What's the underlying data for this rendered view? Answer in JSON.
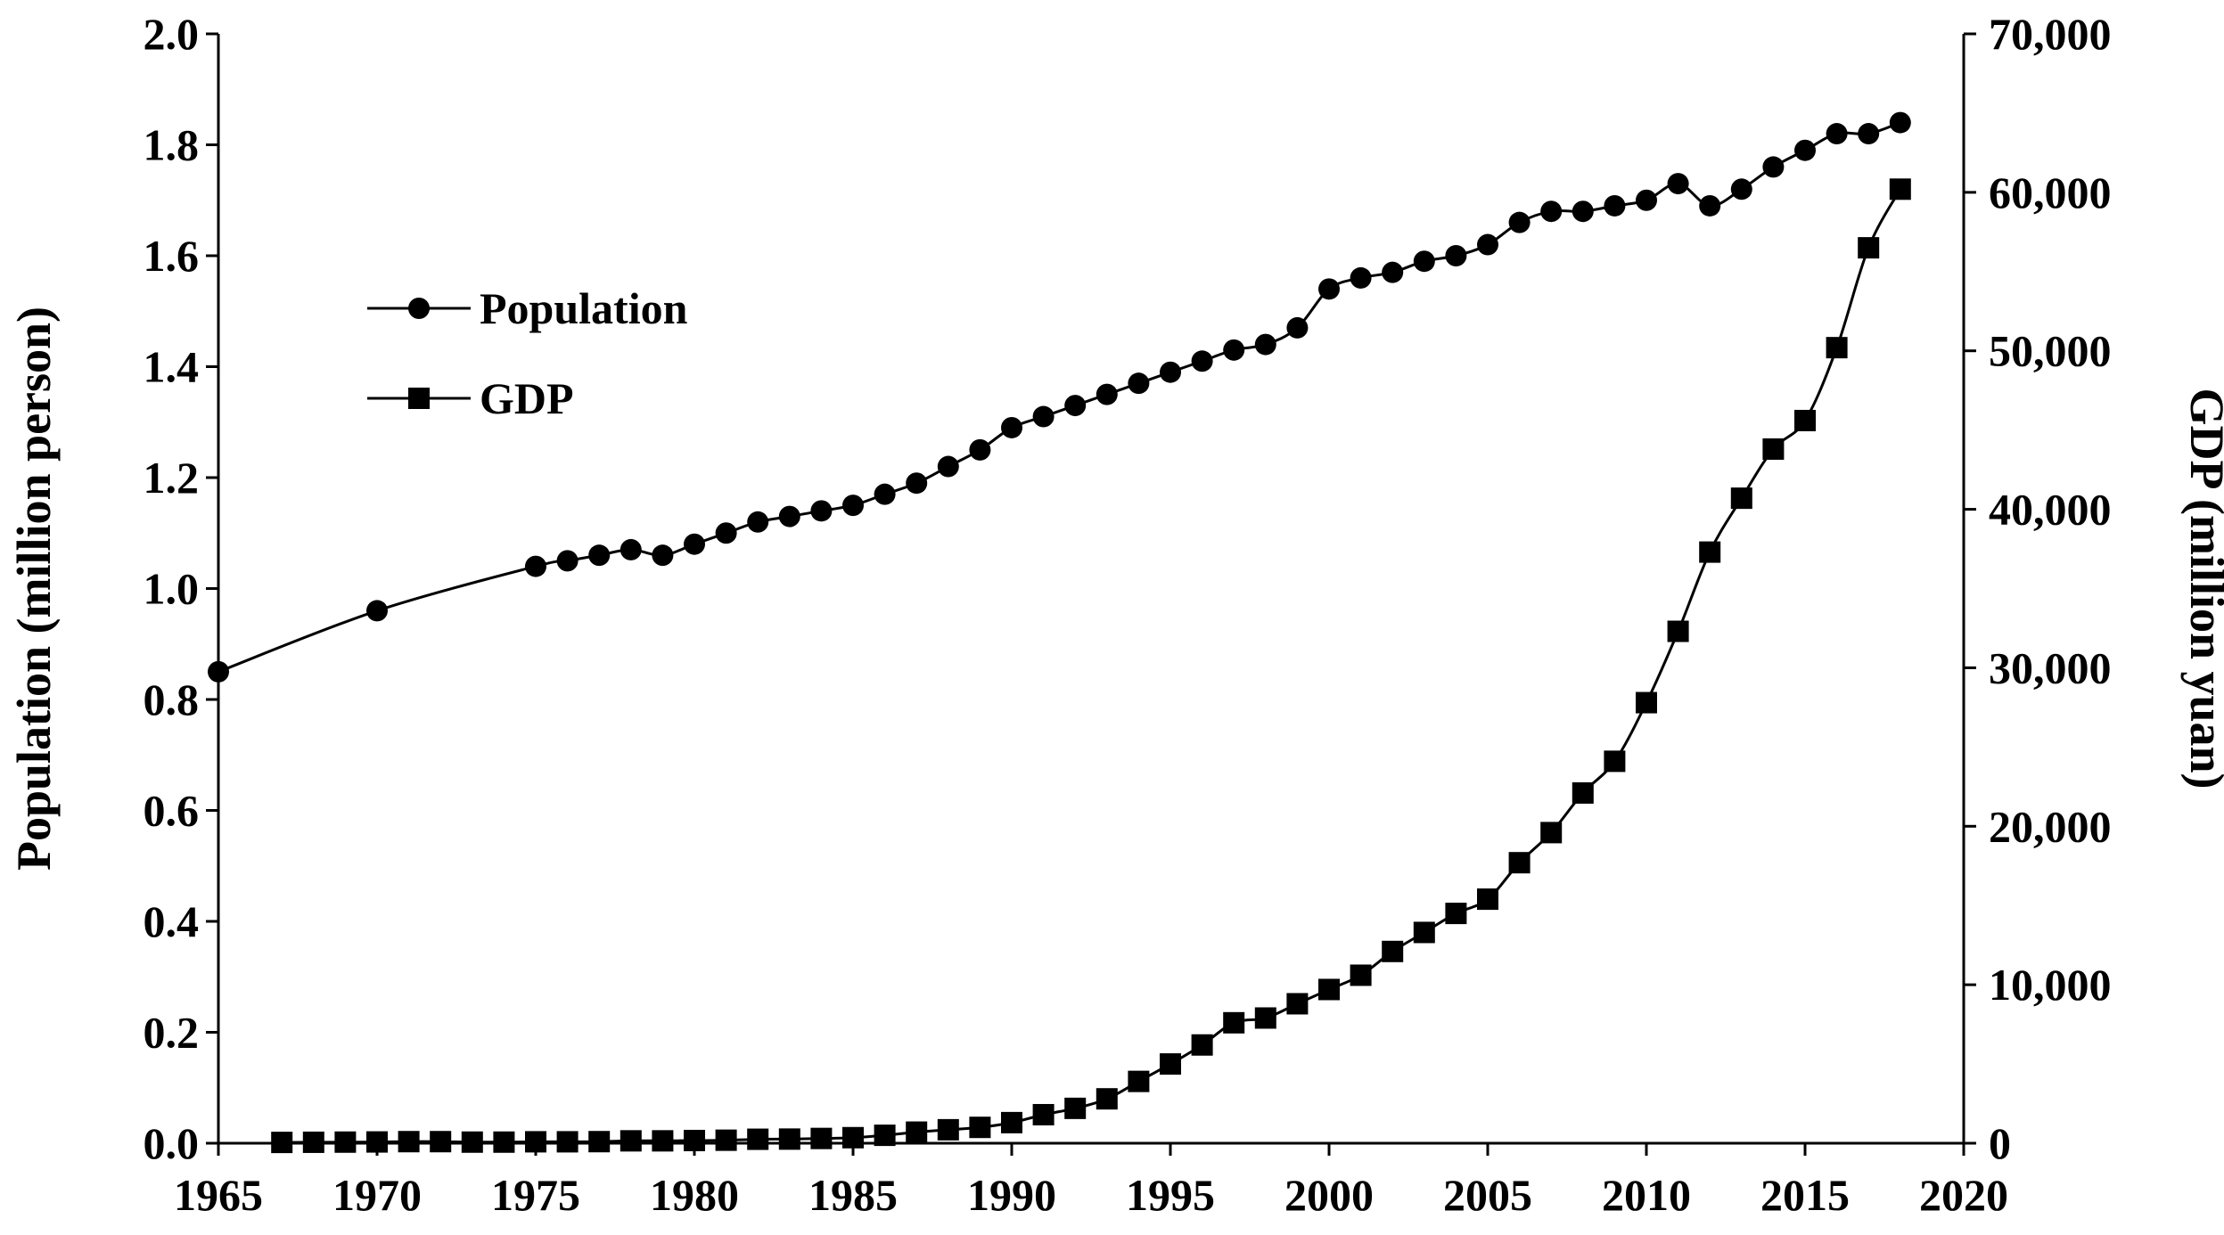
{
  "chart_data": {
    "type": "line",
    "title": "",
    "xlabel": "",
    "ylabel": "Population (million person)",
    "y2label": "GDP (million yuan)",
    "xlim": [
      1965,
      2020
    ],
    "ylim": [
      0,
      2.0
    ],
    "y2lim": [
      0,
      70000
    ],
    "x_ticks": [
      "1965",
      "1970",
      "1975",
      "1980",
      "1985",
      "1990",
      "1995",
      "2000",
      "2005",
      "2010",
      "2015",
      "2020"
    ],
    "y_ticks": [
      "0.0",
      "0.2",
      "0.4",
      "0.6",
      "0.8",
      "1.0",
      "1.2",
      "1.4",
      "1.6",
      "1.8",
      "2.0"
    ],
    "y2_ticks": [
      "0",
      "10,000",
      "20,000",
      "30,000",
      "40,000",
      "50,000",
      "60,000",
      "70,000"
    ],
    "legend_position": "upper-left",
    "series": [
      {
        "name": "Population",
        "axis": "left",
        "marker": "circle",
        "x": [
          1965,
          1970,
          1975,
          1976,
          1977,
          1978,
          1979,
          1980,
          1981,
          1982,
          1983,
          1984,
          1985,
          1986,
          1987,
          1988,
          1989,
          1990,
          1991,
          1992,
          1993,
          1994,
          1995,
          1996,
          1997,
          1998,
          1999,
          2000,
          2001,
          2002,
          2003,
          2004,
          2005,
          2006,
          2007,
          2008,
          2009,
          2010,
          2011,
          2012,
          2013,
          2014,
          2015,
          2016,
          2017,
          2018
        ],
        "values": [
          0.85,
          0.96,
          1.04,
          1.05,
          1.06,
          1.07,
          1.06,
          1.08,
          1.1,
          1.12,
          1.13,
          1.14,
          1.15,
          1.17,
          1.19,
          1.22,
          1.25,
          1.29,
          1.31,
          1.33,
          1.35,
          1.37,
          1.39,
          1.41,
          1.43,
          1.44,
          1.47,
          1.54,
          1.56,
          1.57,
          1.59,
          1.6,
          1.62,
          1.66,
          1.68,
          1.68,
          1.69,
          1.7,
          1.73,
          1.69,
          1.72,
          1.76,
          1.79,
          1.82,
          1.82,
          1.84
        ]
      },
      {
        "name": "GDP",
        "axis": "right",
        "marker": "square",
        "x": [
          1967,
          1968,
          1969,
          1970,
          1971,
          1972,
          1973,
          1974,
          1975,
          1976,
          1977,
          1978,
          1979,
          1980,
          1981,
          1982,
          1983,
          1984,
          1985,
          1986,
          1987,
          1988,
          1989,
          1990,
          1991,
          1992,
          1993,
          1994,
          1995,
          1996,
          1997,
          1998,
          1999,
          2000,
          2001,
          2002,
          2003,
          2004,
          2005,
          2006,
          2007,
          2008,
          2009,
          2010,
          2011,
          2012,
          2013,
          2014,
          2015,
          2016,
          2017,
          2018
        ],
        "values": [
          50,
          60,
          70,
          80,
          100,
          100,
          70,
          70,
          90,
          90,
          100,
          150,
          150,
          170,
          190,
          250,
          260,
          300,
          350,
          500,
          700,
          850,
          1000,
          1300,
          1800,
          2200,
          2800,
          3900,
          5000,
          6200,
          7600,
          7900,
          8800,
          9700,
          10600,
          12100,
          13300,
          14500,
          15400,
          17700,
          19600,
          22100,
          24100,
          27800,
          32300,
          37300,
          40700,
          43800,
          45600,
          50200,
          56500,
          60200
        ]
      }
    ]
  }
}
